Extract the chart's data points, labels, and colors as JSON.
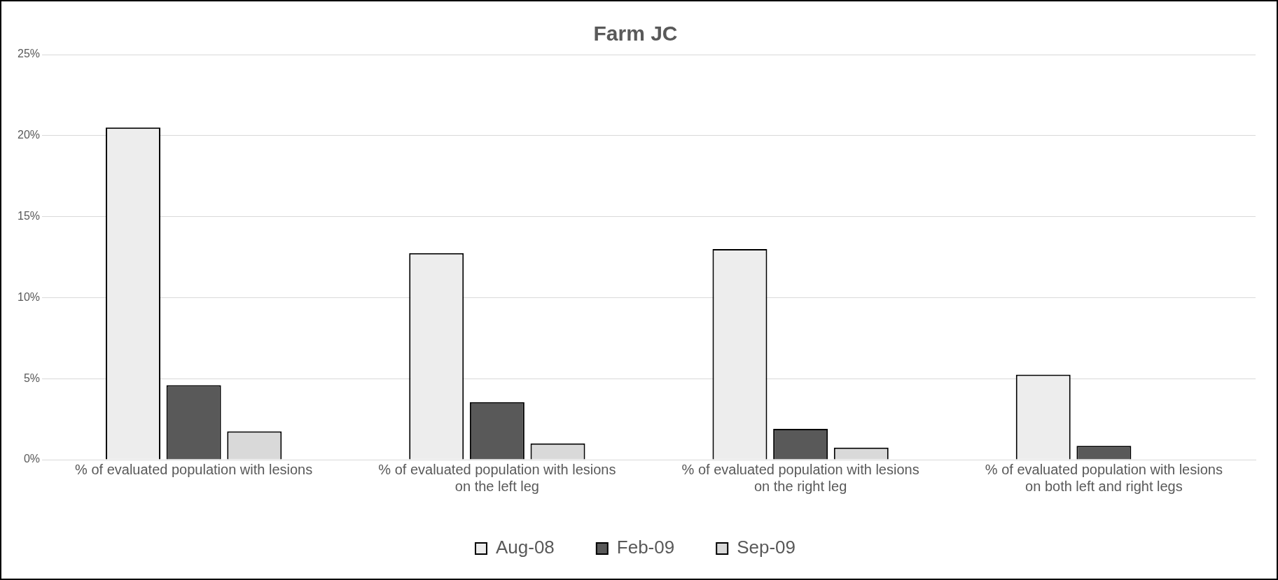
{
  "chart_data": {
    "type": "bar",
    "title": "Farm JC",
    "categories": [
      "% of evaluated population with lesions",
      "% of evaluated population with lesions on the left leg",
      "% of evaluated population with lesions on the right leg",
      "% of evaluated population with lesions on both left and right legs"
    ],
    "series": [
      {
        "name": "Aug-08",
        "color": "#ededed",
        "values": [
          20.5,
          12.75,
          13.0,
          5.25
        ]
      },
      {
        "name": "Feb-09",
        "color": "#595959",
        "values": [
          4.6,
          3.55,
          1.9,
          0.85
        ]
      },
      {
        "name": "Sep-09",
        "color": "#d9d9d9",
        "values": [
          1.75,
          1.0,
          0.75,
          0
        ]
      }
    ],
    "ylim": [
      0,
      25
    ],
    "yticks": [
      {
        "value": 0,
        "label": "0%"
      },
      {
        "value": 5,
        "label": "5%"
      },
      {
        "value": 10,
        "label": "10%"
      },
      {
        "value": 15,
        "label": "15%"
      },
      {
        "value": 20,
        "label": "20%"
      },
      {
        "value": 25,
        "label": "25%"
      }
    ],
    "grid": "y",
    "legend": "bottom"
  }
}
